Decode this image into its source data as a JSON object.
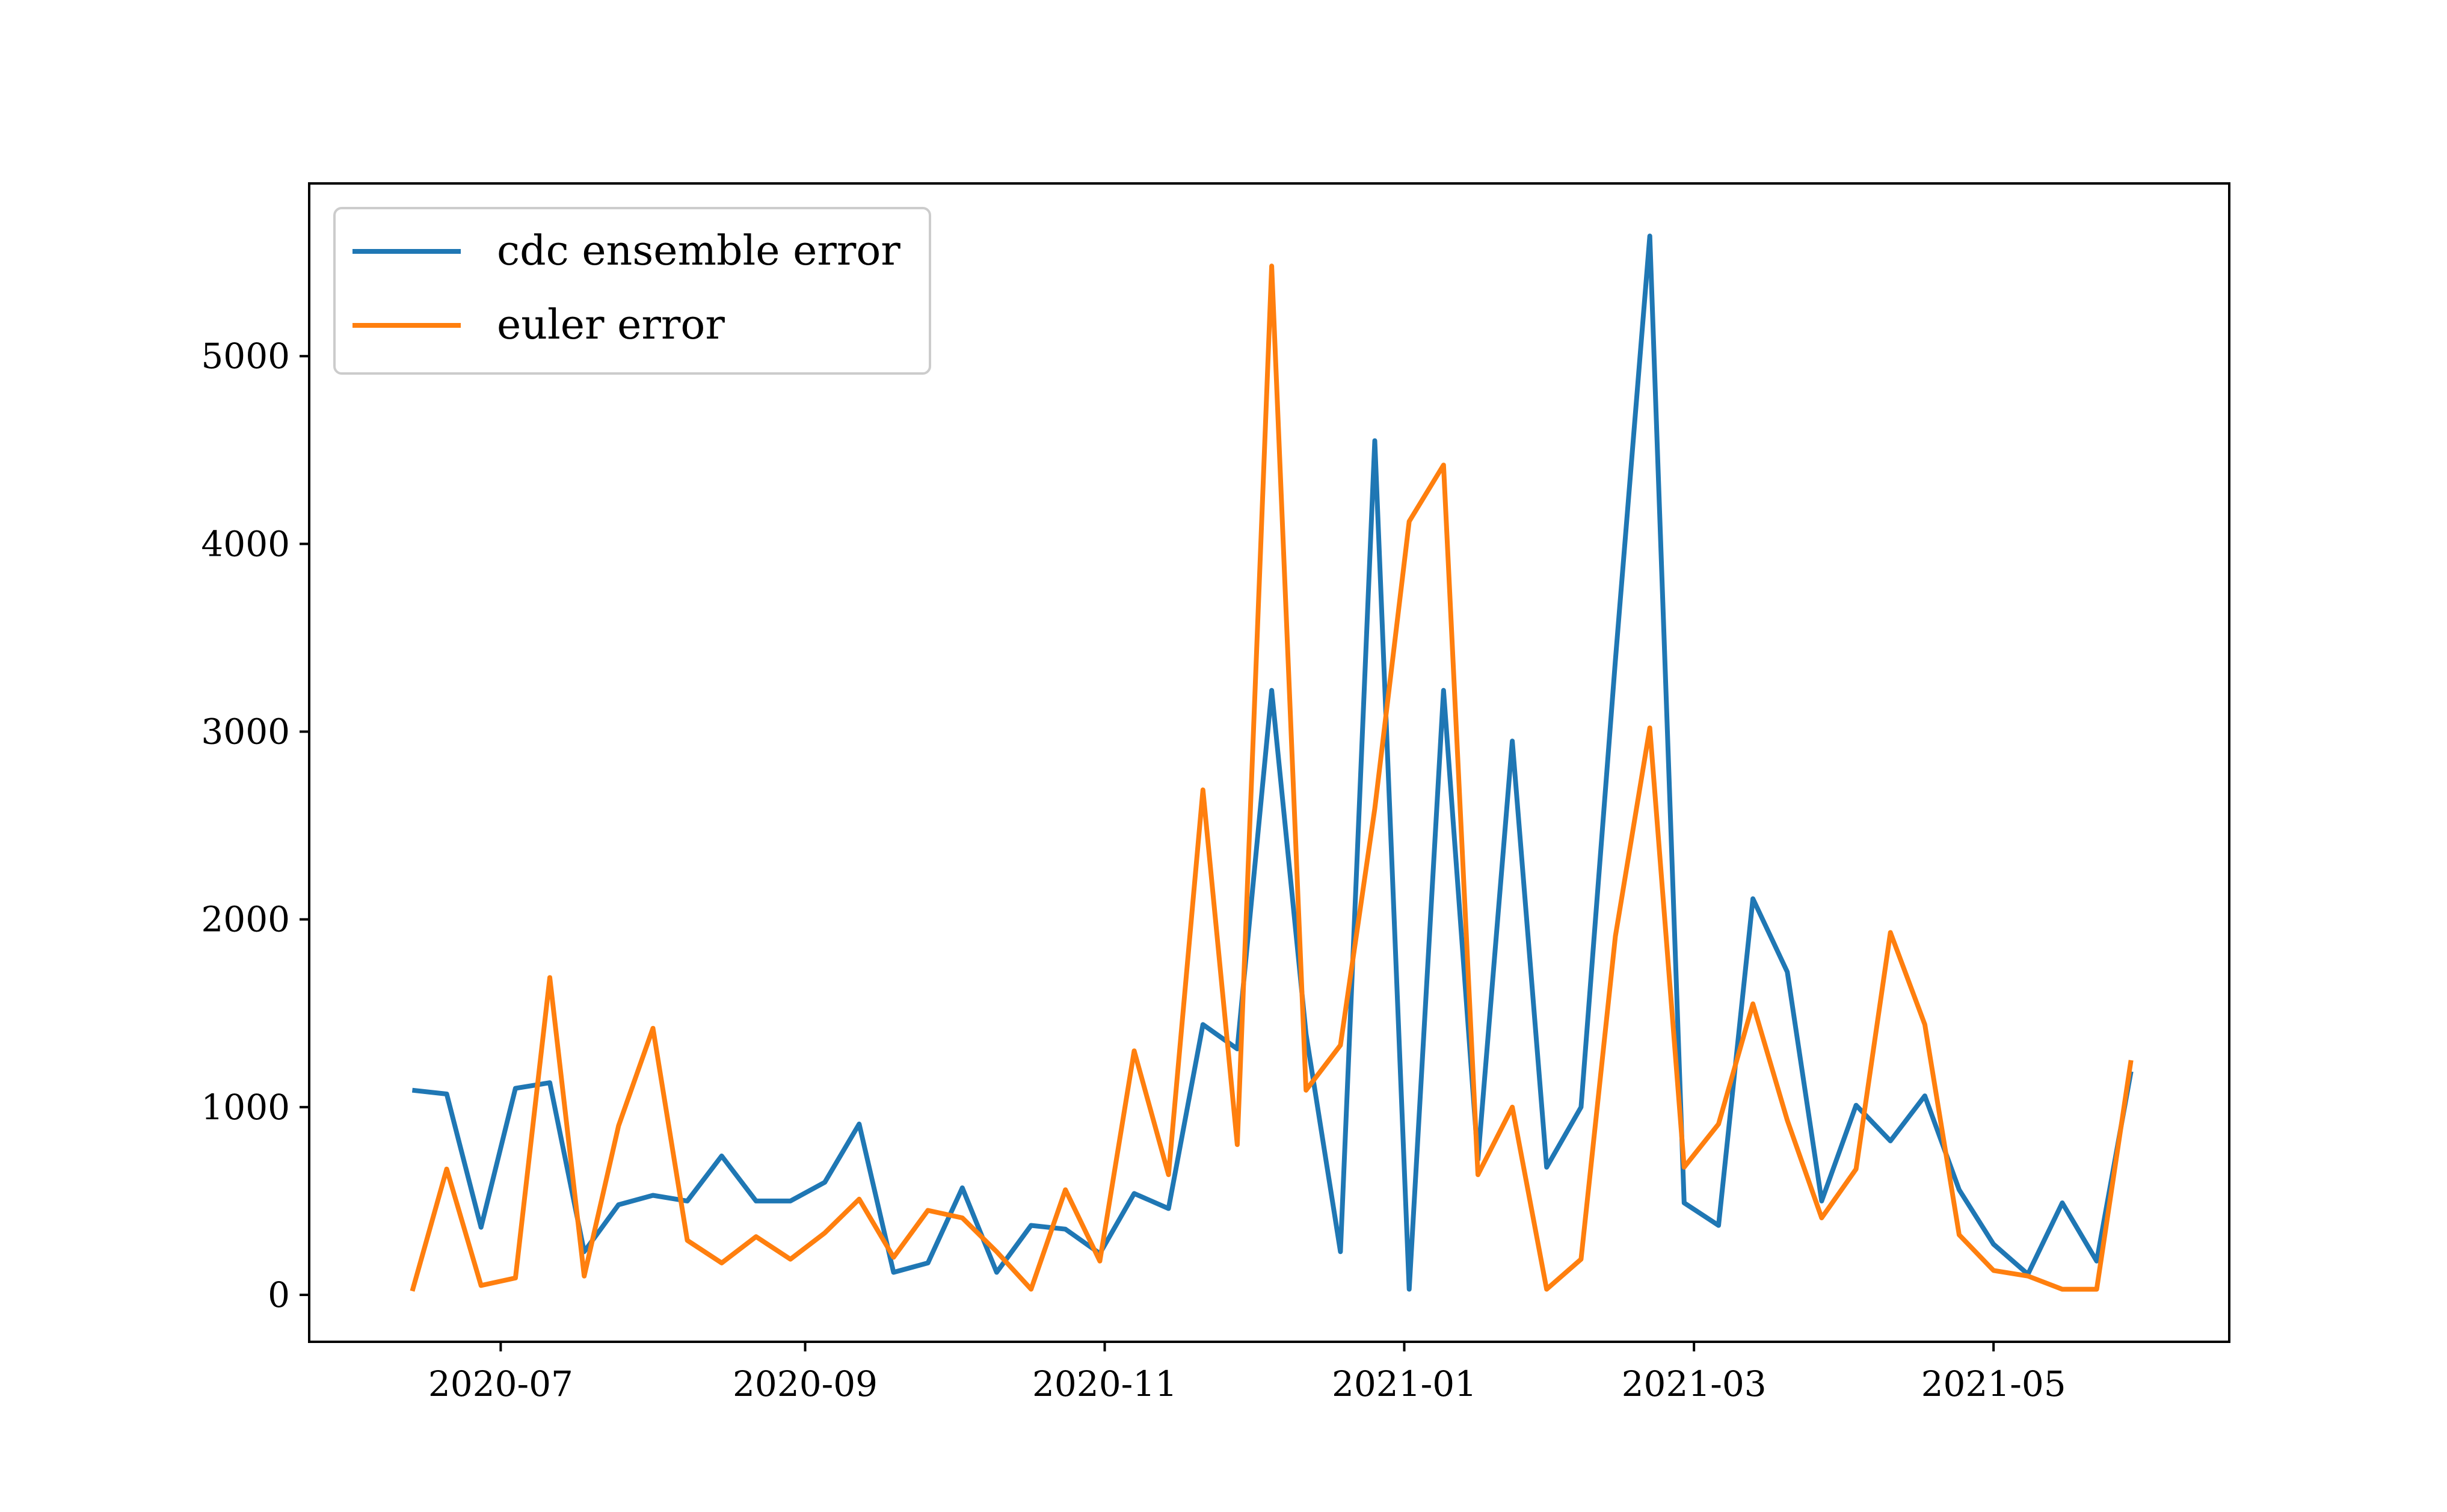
{
  "chart_data": {
    "type": "line",
    "title": "",
    "xlabel": "",
    "ylabel": "",
    "x_type": "date",
    "x": [
      "2020-06-13",
      "2020-06-20",
      "2020-06-27",
      "2020-07-04",
      "2020-07-11",
      "2020-07-18",
      "2020-07-25",
      "2020-08-01",
      "2020-08-08",
      "2020-08-15",
      "2020-08-22",
      "2020-08-29",
      "2020-09-05",
      "2020-09-12",
      "2020-09-19",
      "2020-09-26",
      "2020-10-03",
      "2020-10-10",
      "2020-10-17",
      "2020-10-24",
      "2020-10-31",
      "2020-11-07",
      "2020-11-14",
      "2020-11-21",
      "2020-11-28",
      "2020-12-05",
      "2020-12-12",
      "2020-12-19",
      "2020-12-26",
      "2021-01-02",
      "2021-01-09",
      "2021-01-16",
      "2021-01-23",
      "2021-01-30",
      "2021-02-06",
      "2021-02-13",
      "2021-02-20",
      "2021-02-27",
      "2021-03-06",
      "2021-03-13",
      "2021-03-20",
      "2021-03-27",
      "2021-04-03",
      "2021-04-10",
      "2021-04-17",
      "2021-04-24",
      "2021-05-01",
      "2021-05-08",
      "2021-05-15",
      "2021-05-22",
      "2021-05-29"
    ],
    "series": [
      {
        "name": "cdc ensemble error",
        "color": "#1f77b4",
        "values": [
          1090,
          1070,
          360,
          1100,
          1130,
          230,
          480,
          530,
          500,
          740,
          500,
          500,
          600,
          910,
          120,
          170,
          570,
          120,
          370,
          350,
          220,
          540,
          460,
          1440,
          1310,
          3220,
          1390,
          230,
          4550,
          30,
          3220,
          720,
          2950,
          680,
          1000,
          3380,
          5640,
          490,
          370,
          2110,
          1720,
          500,
          1010,
          820,
          1060,
          560,
          270,
          110,
          490,
          180,
          1190
        ]
      },
      {
        "name": "euler error",
        "color": "#ff7f0e",
        "values": [
          20,
          670,
          50,
          90,
          1690,
          100,
          900,
          1420,
          290,
          170,
          310,
          190,
          330,
          510,
          200,
          450,
          410,
          230,
          30,
          560,
          180,
          1300,
          640,
          2690,
          800,
          5480,
          1090,
          1330,
          2590,
          4120,
          4420,
          640,
          1000,
          30,
          190,
          1910,
          3020,
          680,
          910,
          1550,
          930,
          410,
          670,
          1930,
          1440,
          320,
          130,
          100,
          30,
          30,
          1250
        ]
      }
    ],
    "x_ticks": [
      "2020-07",
      "2020-09",
      "2020-11",
      "2021-01",
      "2021-03",
      "2021-05"
    ],
    "y_ticks": [
      "0",
      "1000",
      "2000",
      "3000",
      "4000",
      "5000"
    ],
    "xlim": [
      "2020-05-23",
      "2021-06-18"
    ],
    "ylim": [
      -250,
      5920
    ],
    "legend_placement": "upper-left",
    "grid": false
  }
}
